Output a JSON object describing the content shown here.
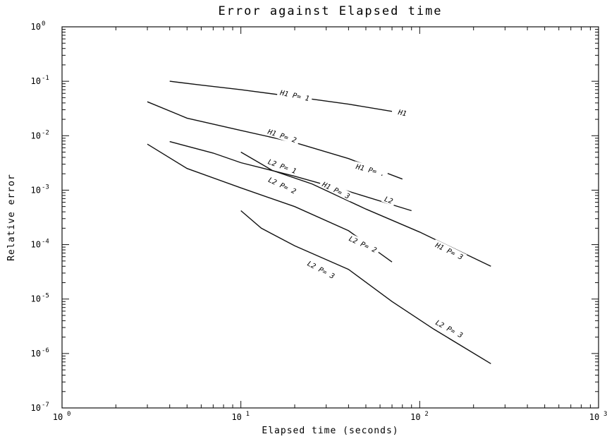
{
  "chart_data": {
    "type": "line",
    "title": "Error against Elapsed time",
    "xlabel": "Elapsed time (seconds)",
    "ylabel": "Relative error",
    "xscale": "log",
    "yscale": "log",
    "xlim": [
      1,
      1000
    ],
    "ylim": [
      1e-07,
      1
    ],
    "grid": false,
    "legend": "none",
    "x_tick_labels": [
      {
        "value": 1,
        "base": "10",
        "exp": "0"
      },
      {
        "value": 10,
        "base": "10",
        "exp": "1"
      },
      {
        "value": 100,
        "base": "10",
        "exp": "2"
      },
      {
        "value": 1000,
        "base": "10",
        "exp": "3"
      }
    ],
    "y_tick_labels": [
      {
        "value": 1,
        "base": "10",
        "exp": "0"
      },
      {
        "value": 0.1,
        "base": "10",
        "exp": "-1"
      },
      {
        "value": 0.01,
        "base": "10",
        "exp": "-2"
      },
      {
        "value": 0.001,
        "base": "10",
        "exp": "-3"
      },
      {
        "value": 0.0001,
        "base": "10",
        "exp": "-4"
      },
      {
        "value": 1e-05,
        "base": "10",
        "exp": "-5"
      },
      {
        "value": 1e-06,
        "base": "10",
        "exp": "-6"
      },
      {
        "value": 1e-07,
        "base": "10",
        "exp": "-7"
      }
    ],
    "series": [
      {
        "points": [
          [
            4,
            0.1
          ],
          [
            6,
            0.085
          ],
          [
            10,
            0.07
          ],
          [
            20,
            0.052
          ],
          [
            40,
            0.038
          ],
          [
            70,
            0.028
          ]
        ]
      },
      {
        "points": [
          [
            3,
            0.042
          ],
          [
            5,
            0.021
          ],
          [
            10,
            0.0125
          ],
          [
            20,
            0.0075
          ],
          [
            40,
            0.0038
          ],
          [
            80,
            0.0016
          ]
        ]
      },
      {
        "points": [
          [
            4,
            0.0078
          ],
          [
            7,
            0.0048
          ],
          [
            10,
            0.0032
          ],
          [
            20,
            0.0018
          ],
          [
            40,
            0.00095
          ],
          [
            90,
            0.00042
          ]
        ]
      },
      {
        "points": [
          [
            10,
            0.005
          ],
          [
            15,
            0.0023
          ],
          [
            25,
            0.0013
          ],
          [
            50,
            0.00045
          ],
          [
            100,
            0.00017
          ],
          [
            250,
            4e-05
          ]
        ]
      },
      {
        "points": [
          [
            3,
            0.007
          ],
          [
            5,
            0.0025
          ],
          [
            10,
            0.0011
          ],
          [
            20,
            0.0005
          ],
          [
            40,
            0.00018
          ],
          [
            70,
            4.8e-05
          ]
        ]
      },
      {
        "points": [
          [
            10,
            0.00042
          ],
          [
            13,
            0.0002
          ],
          [
            20,
            9.5e-05
          ],
          [
            40,
            3.5e-05
          ],
          [
            70,
            9e-06
          ],
          [
            120,
            2.8e-06
          ],
          [
            250,
            6.5e-07
          ]
        ]
      }
    ],
    "annotations": [
      {
        "text": "H1 P= 1",
        "x": 20,
        "y": 0.054,
        "angle": 12
      },
      {
        "text": "H1",
        "x": 80,
        "y": 0.026,
        "angle": 12
      },
      {
        "text": "H1 P= 2",
        "x": 17,
        "y": 0.0098,
        "angle": 18
      },
      {
        "text": "H1 P= .",
        "x": 53,
        "y": 0.0023,
        "angle": 15
      },
      {
        "text": "L2 P= 1",
        "x": 17,
        "y": 0.0027,
        "angle": 20
      },
      {
        "text": "H1 P= 3",
        "x": 34,
        "y": 0.00098,
        "angle": 26
      },
      {
        "text": "L2",
        "x": 67,
        "y": 0.00065,
        "angle": 20
      },
      {
        "text": "H1 P= 3",
        "x": 146,
        "y": 7.5e-05,
        "angle": 26
      },
      {
        "text": "L2 P= 2",
        "x": 17,
        "y": 0.0012,
        "angle": 25
      },
      {
        "text": "L2 P= 2",
        "x": 48,
        "y": 0.0001,
        "angle": 25
      },
      {
        "text": "L2 P= 3",
        "x": 28,
        "y": 3.4e-05,
        "angle": 28
      },
      {
        "text": "L2 P= 3",
        "x": 146,
        "y": 2.8e-06,
        "angle": 28
      }
    ]
  }
}
